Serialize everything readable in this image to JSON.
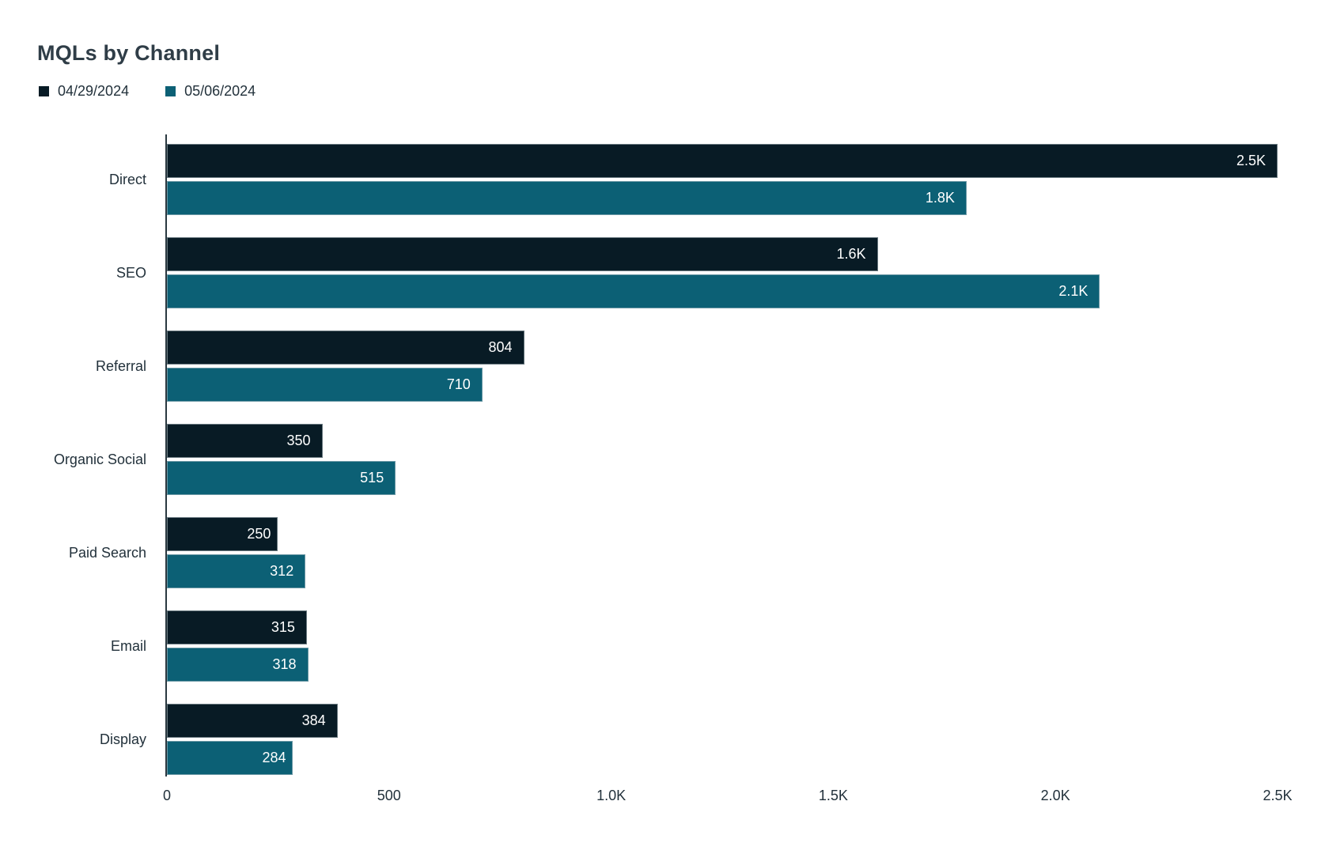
{
  "title": "MQLs by Channel",
  "colors": {
    "series1": "#081b25",
    "series2": "#0c6075",
    "title_text": "#2f3d47",
    "axis_text": "#22313b",
    "value_label_text": "#ffffff",
    "axis_line": "#2a3840",
    "background": "#ffffff"
  },
  "legend": [
    {
      "label": "04/29/2024",
      "color": "#081b25"
    },
    {
      "label": "05/06/2024",
      "color": "#0c6075"
    }
  ],
  "chart_data": {
    "type": "bar",
    "orientation": "horizontal",
    "title": "MQLs by Channel",
    "categories": [
      "Direct",
      "SEO",
      "Referral",
      "Organic Social",
      "Paid Search",
      "Email",
      "Display"
    ],
    "series": [
      {
        "name": "04/29/2024",
        "color": "#081b25",
        "values": [
          2500,
          1600,
          804,
          350,
          250,
          315,
          384
        ],
        "labels": [
          "2.5K",
          "1.6K",
          "804",
          "350",
          "250",
          "315",
          "384"
        ]
      },
      {
        "name": "05/06/2024",
        "color": "#0c6075",
        "values": [
          1800,
          2100,
          710,
          515,
          312,
          318,
          284
        ],
        "labels": [
          "1.8K",
          "2.1K",
          "710",
          "515",
          "312",
          "318",
          "284"
        ]
      }
    ],
    "x_ticks": [
      "0",
      "500",
      "1.0K",
      "1.5K",
      "2.0K",
      "2.5K"
    ],
    "x_tick_values": [
      0,
      500,
      1000,
      1500,
      2000,
      2500
    ],
    "xlim": [
      0,
      2500
    ],
    "xlabel": "",
    "ylabel": "",
    "grid": false,
    "legend_position": "top-left",
    "value_labels_inside_bars": true
  }
}
